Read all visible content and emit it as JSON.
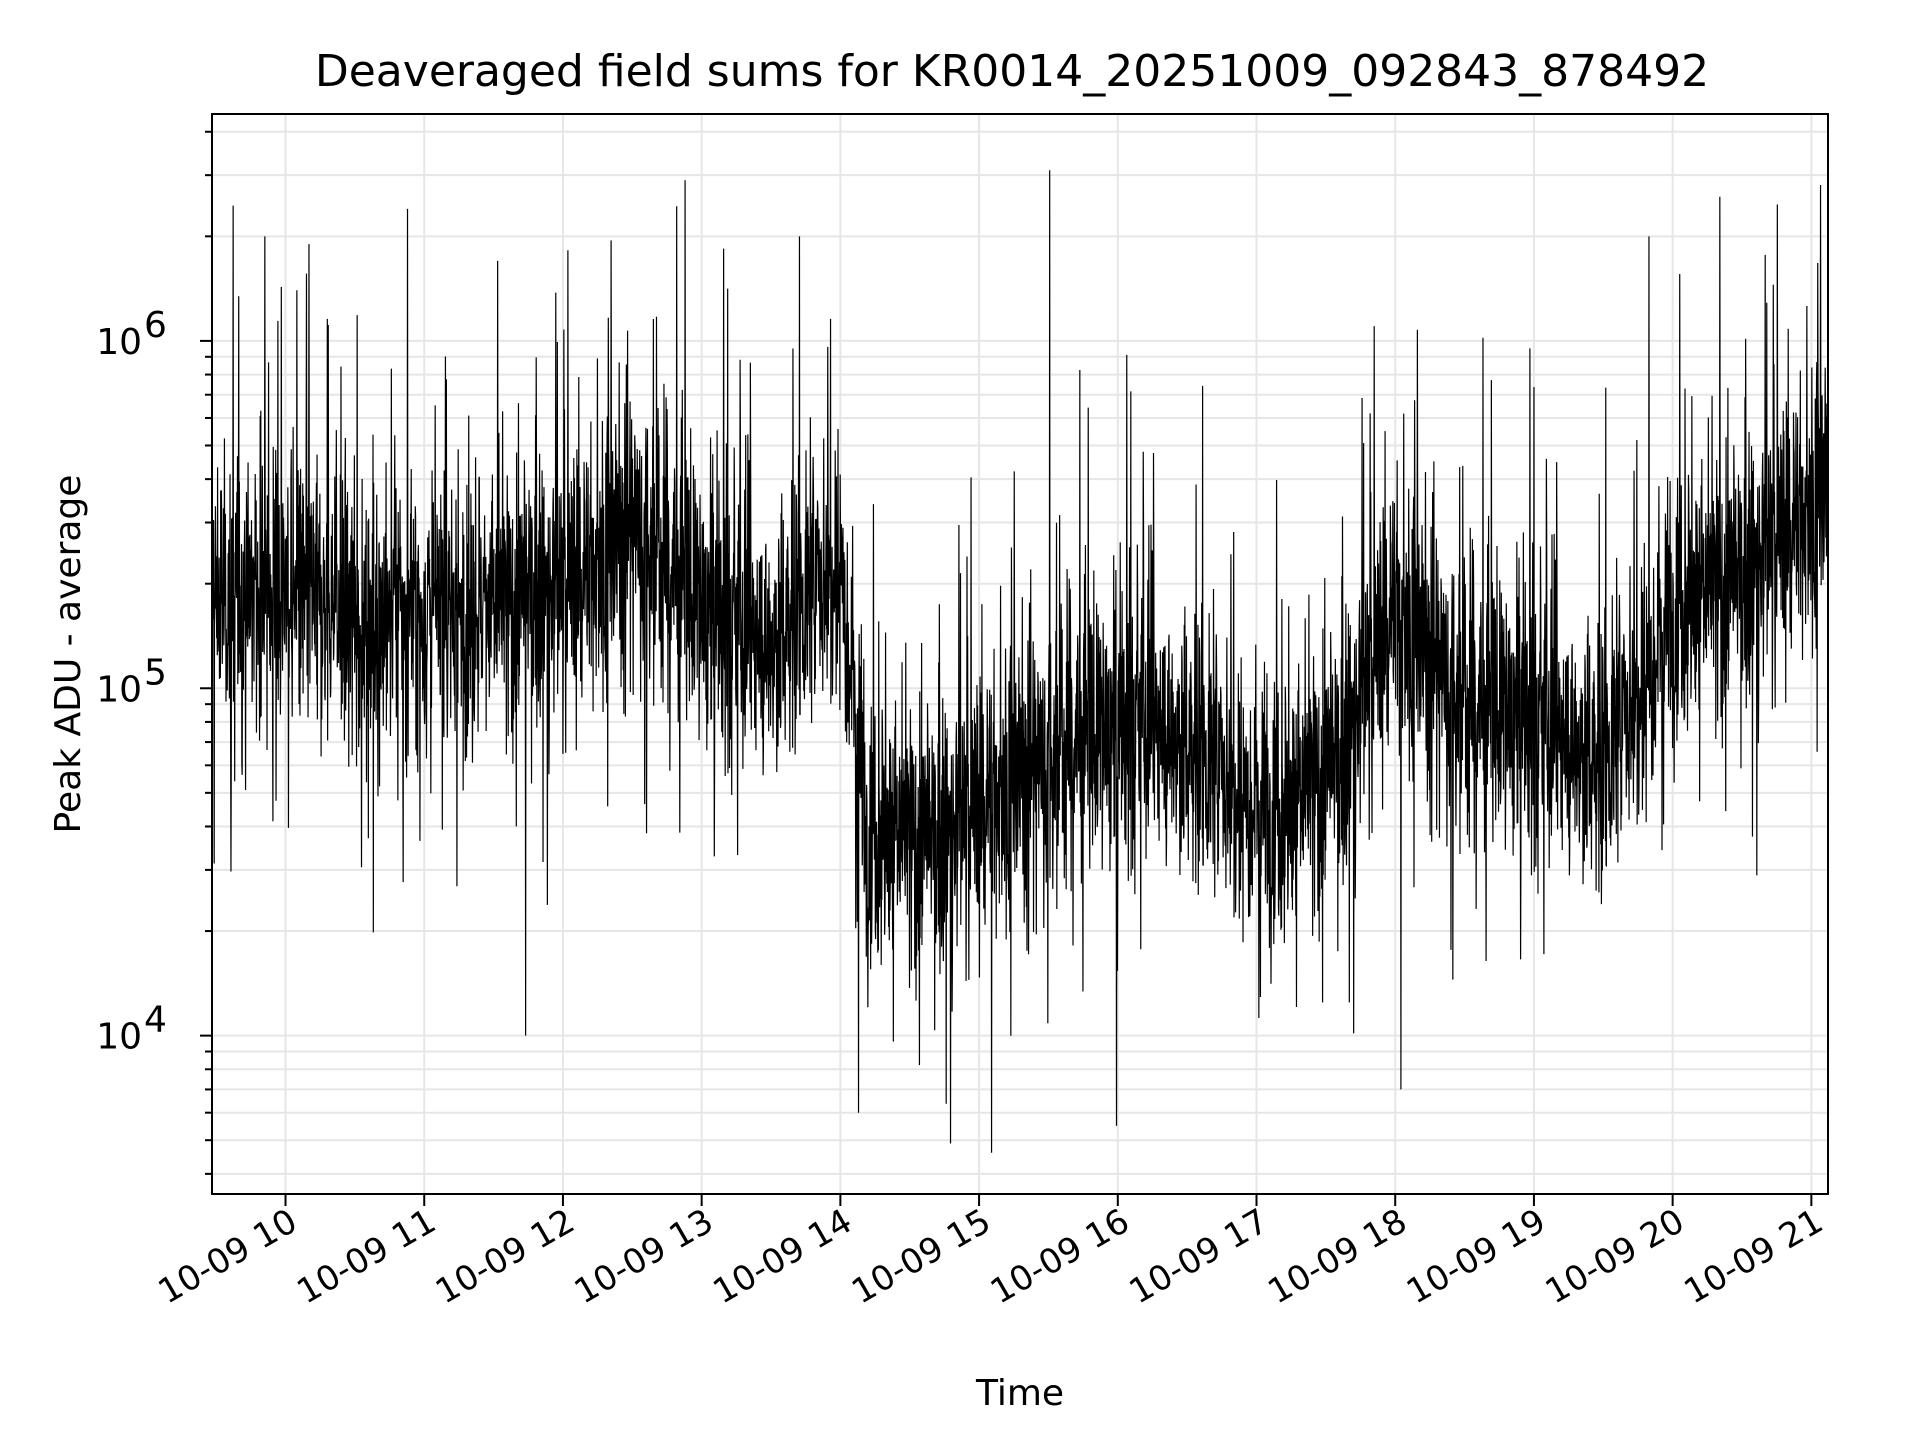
{
  "chart_data": {
    "type": "line",
    "title": "Deaveraged field sums for KR0014_20251009_092843_878492",
    "xlabel": "Time",
    "ylabel": "Peak ADU - average",
    "yscale": "log",
    "ylim": [
      3500,
      4500000
    ],
    "xlim_hours": [
      9.47,
      21.12
    ],
    "grid": true,
    "x_ticks": [
      {
        "value": 10,
        "label": "10-09 10"
      },
      {
        "value": 11,
        "label": "10-09 11"
      },
      {
        "value": 12,
        "label": "10-09 12"
      },
      {
        "value": 13,
        "label": "10-09 13"
      },
      {
        "value": 14,
        "label": "10-09 14"
      },
      {
        "value": 15,
        "label": "10-09 15"
      },
      {
        "value": 16,
        "label": "10-09 16"
      },
      {
        "value": 17,
        "label": "10-09 17"
      },
      {
        "value": 18,
        "label": "10-09 18"
      },
      {
        "value": 19,
        "label": "10-09 19"
      },
      {
        "value": 20,
        "label": "10-09 20"
      },
      {
        "value": 21,
        "label": "10-09 21"
      }
    ],
    "y_ticks": [
      {
        "value": 10000,
        "base": "10",
        "exp": "4"
      },
      {
        "value": 100000,
        "base": "10",
        "exp": "5"
      },
      {
        "value": 1000000,
        "base": "10",
        "exp": "6"
      }
    ],
    "series": [
      {
        "name": "field sums",
        "description": "dense noisy signal, approx. 7 samples per minute",
        "envelope": [
          {
            "hour": 9.5,
            "median": 180000
          },
          {
            "hour": 10.0,
            "median": 190000
          },
          {
            "hour": 10.5,
            "median": 160000
          },
          {
            "hour": 11.0,
            "median": 160000
          },
          {
            "hour": 11.5,
            "median": 170000
          },
          {
            "hour": 12.0,
            "median": 190000
          },
          {
            "hour": 12.5,
            "median": 300000
          },
          {
            "hour": 13.0,
            "median": 170000
          },
          {
            "hour": 13.5,
            "median": 130000
          },
          {
            "hour": 14.0,
            "median": 250000
          },
          {
            "hour": 14.2,
            "median": 40000
          },
          {
            "hour": 14.7,
            "median": 35000
          },
          {
            "hour": 15.2,
            "median": 55000
          },
          {
            "hour": 15.7,
            "median": 70000
          },
          {
            "hour": 16.2,
            "median": 80000
          },
          {
            "hour": 16.7,
            "median": 60000
          },
          {
            "hour": 17.2,
            "median": 45000
          },
          {
            "hour": 17.6,
            "median": 60000
          },
          {
            "hour": 18.0,
            "median": 180000
          },
          {
            "hour": 18.5,
            "median": 90000
          },
          {
            "hour": 19.0,
            "median": 80000
          },
          {
            "hour": 19.5,
            "median": 60000
          },
          {
            "hour": 20.0,
            "median": 180000
          },
          {
            "hour": 20.5,
            "median": 200000
          },
          {
            "hour": 21.12,
            "median": 400000
          }
        ],
        "spikes": [
          {
            "hour": 9.85,
            "value": 2000000
          },
          {
            "hour": 10.17,
            "value": 1900000
          },
          {
            "hour": 10.88,
            "value": 2400000
          },
          {
            "hour": 11.53,
            "value": 1700000
          },
          {
            "hour": 11.73,
            "value": 10000
          },
          {
            "hour": 12.88,
            "value": 2900000
          },
          {
            "hour": 14.13,
            "value": 6000
          },
          {
            "hour": 15.09,
            "value": 4600
          },
          {
            "hour": 15.51,
            "value": 3100000
          },
          {
            "hour": 15.99,
            "value": 5500
          },
          {
            "hour": 18.04,
            "value": 7000
          },
          {
            "hour": 19.83,
            "value": 2000000
          },
          {
            "hour": 20.34,
            "value": 2600000
          }
        ]
      }
    ]
  }
}
